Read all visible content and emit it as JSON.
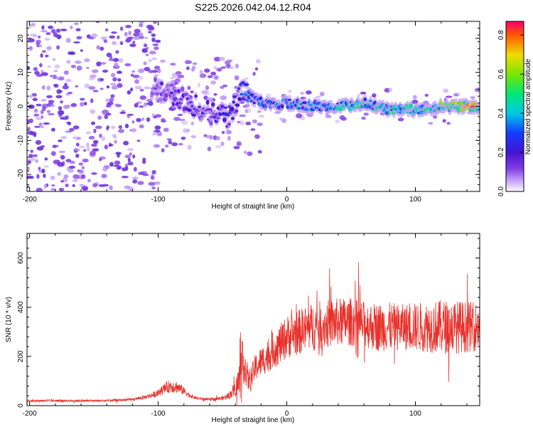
{
  "title": "S225.2026.042.04.12.R04",
  "chart_data": [
    {
      "type": "heatmap",
      "xlabel": "Height of straight line (km)",
      "ylabel": "Frequency (Hz)",
      "xlim": [
        -202,
        150
      ],
      "ylim": [
        -25,
        25
      ],
      "xticks": [
        -200,
        -100,
        0,
        100
      ],
      "xtick_labels": [
        "-200",
        "-100",
        "0",
        "100"
      ],
      "yticks": [
        -20,
        -10,
        0,
        10,
        20
      ],
      "ytick_labels": [
        "-20",
        "-10",
        "0",
        "10",
        "20"
      ],
      "colorbar": {
        "label": "Normalized spectral amplitude",
        "range": [
          0,
          0.87
        ],
        "ticks": [
          0.0,
          0.2,
          0.4,
          0.6,
          0.8
        ],
        "tick_labels": [
          "0.0",
          "0.2",
          "0.4",
          "0.6",
          "0.8"
        ]
      },
      "signal_track": {
        "description_points_x_km": [
          -100,
          -80,
          -60,
          -45,
          -35,
          -25,
          -10,
          0,
          20,
          40,
          60,
          80,
          100,
          120,
          150
        ],
        "center_frequency_hz": [
          5,
          2,
          -2,
          -3,
          5,
          2,
          0,
          1,
          0,
          0,
          1,
          -1,
          -1,
          0,
          0
        ],
        "peak_amplitude": [
          0.15,
          0.2,
          0.2,
          0.25,
          0.3,
          0.35,
          0.35,
          0.4,
          0.45,
          0.45,
          0.5,
          0.5,
          0.5,
          0.6,
          0.8
        ]
      }
    },
    {
      "type": "line",
      "xlabel": "Height of straight line (km)",
      "ylabel": "SNR (10 * v/v)",
      "xlim": [
        -202,
        150
      ],
      "ylim": [
        0,
        700
      ],
      "xticks": [
        -200,
        -100,
        0,
        100
      ],
      "xtick_labels": [
        "-200",
        "-100",
        "0",
        "100"
      ],
      "yticks": [
        0,
        200,
        400,
        600
      ],
      "ytick_labels": [
        "0",
        "200",
        "400",
        "600"
      ],
      "series": [
        {
          "name": "SNR",
          "color": "#e8302a",
          "x": [
            -200,
            -180,
            -160,
            -140,
            -120,
            -110,
            -100,
            -95,
            -90,
            -85,
            -80,
            -75,
            -70,
            -60,
            -50,
            -45,
            -40,
            -37,
            -35,
            -33,
            -30,
            -27,
            -25,
            -20,
            -15,
            -10,
            -5,
            0,
            10,
            20,
            30,
            40,
            50,
            60,
            70,
            80,
            90,
            100,
            110,
            120,
            130,
            140,
            150
          ],
          "mean": [
            20,
            20,
            20,
            20,
            25,
            35,
            50,
            70,
            80,
            75,
            60,
            40,
            30,
            25,
            30,
            40,
            70,
            100,
            150,
            180,
            100,
            120,
            150,
            180,
            200,
            230,
            250,
            280,
            300,
            320,
            330,
            340,
            340,
            330,
            320,
            320,
            320,
            320,
            320,
            320,
            320,
            320,
            320
          ],
          "spread": [
            8,
            8,
            8,
            8,
            10,
            15,
            25,
            40,
            50,
            45,
            30,
            15,
            10,
            10,
            15,
            25,
            60,
            150,
            200,
            150,
            80,
            90,
            100,
            110,
            120,
            140,
            150,
            160,
            170,
            180,
            180,
            180,
            180,
            170,
            180,
            180,
            170,
            180,
            190,
            200,
            200,
            190,
            180
          ]
        }
      ]
    }
  ]
}
